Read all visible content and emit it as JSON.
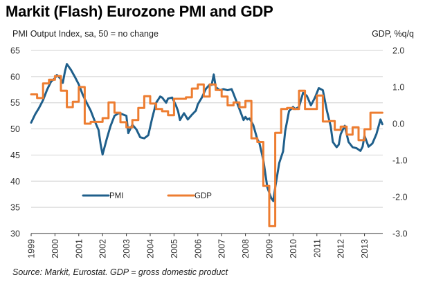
{
  "chart_data": {
    "type": "line",
    "title": "Markit (Flash) Eurozone PMI and GDP",
    "ylabel_left": "PMI Output Index, sa, 50 = no change",
    "ylabel_right": "GDP, %q/q",
    "source": "Source: Markit, Eurostat. GDP = gross domestic product",
    "colors": {
      "pmi": "#1f5f8b",
      "gdp": "#ed7d31",
      "grid": "#d9d9d9"
    },
    "y_left": {
      "min": 30,
      "max": 65,
      "ticks": [
        "65",
        "60",
        "55",
        "50",
        "45",
        "40",
        "35",
        "30"
      ],
      "tick_values": [
        65,
        60,
        55,
        50,
        45,
        40,
        35,
        30
      ]
    },
    "y_right": {
      "min": -3.0,
      "max": 2.0,
      "ticks": [
        "2.0",
        "1.0",
        "0.0",
        "-1.0",
        "-2.0",
        "-3.0"
      ],
      "tick_values": [
        2,
        1,
        0,
        -1,
        -2,
        -3
      ]
    },
    "x_ticks": [
      "1999",
      "2000",
      "2001",
      "2002",
      "2003",
      "2004",
      "2005",
      "2006",
      "2007",
      "2008",
      "2009",
      "2010",
      "2011",
      "2012",
      "2013"
    ],
    "x_range": [
      1999,
      2014
    ],
    "grid": true,
    "legend": {
      "placement": "bottom-left",
      "items": [
        {
          "name": "PMI",
          "key": "pmi"
        },
        {
          "name": "GDP",
          "key": "gdp"
        }
      ]
    },
    "series": [
      {
        "name": "PMI",
        "axis": "left",
        "step": false,
        "x": [
          1999.0,
          1999.17,
          1999.33,
          1999.5,
          1999.67,
          1999.83,
          2000.0,
          2000.08,
          2000.25,
          2000.33,
          2000.42,
          2000.5,
          2000.67,
          2000.83,
          2001.0,
          2001.17,
          2001.33,
          2001.5,
          2001.67,
          2001.83,
          2001.92,
          2002.0,
          2002.17,
          2002.33,
          2002.5,
          2002.67,
          2002.83,
          2003.0,
          2003.08,
          2003.25,
          2003.42,
          2003.58,
          2003.75,
          2003.92,
          2004.08,
          2004.25,
          2004.42,
          2004.5,
          2004.67,
          2004.75,
          2004.92,
          2005.08,
          2005.17,
          2005.25,
          2005.42,
          2005.58,
          2005.75,
          2005.92,
          2006.0,
          2006.17,
          2006.33,
          2006.5,
          2006.58,
          2006.67,
          2006.75,
          2006.92,
          2007.08,
          2007.25,
          2007.42,
          2007.5,
          2007.67,
          2007.83,
          2007.92,
          2008.0,
          2008.08,
          2008.17,
          2008.33,
          2008.5,
          2008.58,
          2008.75,
          2008.92,
          2009.08,
          2009.17,
          2009.25,
          2009.42,
          2009.58,
          2009.67,
          2009.83,
          2010.0,
          2010.08,
          2010.25,
          2010.42,
          2010.58,
          2010.75,
          2010.92,
          2011.08,
          2011.25,
          2011.42,
          2011.58,
          2011.67,
          2011.83,
          2011.92,
          2012.0,
          2012.17,
          2012.33,
          2012.5,
          2012.67,
          2012.83,
          2012.92,
          2013.0,
          2013.17,
          2013.33,
          2013.5,
          2013.67,
          2013.75
        ],
        "values": [
          51.2,
          52.8,
          54,
          55.5,
          57.5,
          59,
          59.7,
          60.3,
          59.5,
          58.8,
          61,
          62.4,
          61.3,
          60,
          58.5,
          56.5,
          55,
          53.5,
          51.5,
          49.8,
          47,
          45.1,
          48,
          50.5,
          52.5,
          53,
          52.8,
          52.5,
          49.2,
          50.8,
          49.9,
          48.4,
          48.2,
          48.8,
          52,
          55,
          56.2,
          56,
          55,
          55.8,
          56,
          54.5,
          53.4,
          51.7,
          53,
          51.8,
          52.7,
          53.5,
          54.7,
          56,
          57.6,
          58.5,
          58.4,
          60.4,
          58,
          57.4,
          57.6,
          57.4,
          57.6,
          56.7,
          54.7,
          52.8,
          51.7,
          52.3,
          51.8,
          52,
          50.7,
          48,
          47.4,
          44.1,
          38.8,
          36.8,
          36.2,
          38.8,
          43.5,
          45.7,
          49.6,
          53.4,
          54.2,
          53.8,
          54.2,
          56.9,
          56.3,
          54.5,
          56,
          57.8,
          57.4,
          53.5,
          50.5,
          47.5,
          46.5,
          47,
          49,
          50.6,
          47.5,
          46.5,
          46.3,
          45.8,
          46.6,
          48.7,
          46.6,
          47.2,
          49,
          51.8,
          50.9
        ]
      },
      {
        "name": "GDP",
        "axis": "right",
        "step": true,
        "x": [
          1999.0,
          1999.25,
          1999.5,
          1999.75,
          2000.0,
          2000.25,
          2000.5,
          2000.75,
          2001.0,
          2001.25,
          2001.5,
          2001.75,
          2002.0,
          2002.25,
          2002.5,
          2002.75,
          2003.0,
          2003.25,
          2003.5,
          2003.75,
          2004.0,
          2004.25,
          2004.5,
          2004.75,
          2005.0,
          2005.25,
          2005.5,
          2005.75,
          2006.0,
          2006.25,
          2006.5,
          2006.75,
          2007.0,
          2007.25,
          2007.5,
          2007.75,
          2008.0,
          2008.25,
          2008.5,
          2008.75,
          2009.0,
          2009.25,
          2009.5,
          2009.75,
          2010.0,
          2010.25,
          2010.5,
          2010.75,
          2011.0,
          2011.25,
          2011.5,
          2011.75,
          2012.0,
          2012.25,
          2012.5,
          2012.75,
          2013.0,
          2013.25,
          2013.5
        ],
        "values": [
          0.8,
          0.7,
          1.1,
          1.2,
          1.3,
          0.9,
          0.45,
          0.6,
          1.0,
          0.0,
          0.05,
          0.05,
          0.15,
          0.58,
          0.3,
          0.04,
          -0.1,
          0.1,
          0.43,
          0.75,
          0.55,
          0.4,
          0.34,
          0.23,
          0.68,
          0.68,
          0.72,
          0.96,
          1.07,
          0.74,
          1.07,
          0.92,
          0.74,
          0.5,
          0.58,
          0.45,
          0.62,
          -0.4,
          -0.5,
          -1.7,
          -2.8,
          -0.25,
          0.4,
          0.43,
          0.4,
          0.9,
          0.4,
          0.4,
          0.77,
          0.06,
          0.07,
          -0.17,
          -0.08,
          -0.3,
          -0.1,
          -0.45,
          -0.15,
          0.3,
          0.3
        ]
      }
    ]
  }
}
